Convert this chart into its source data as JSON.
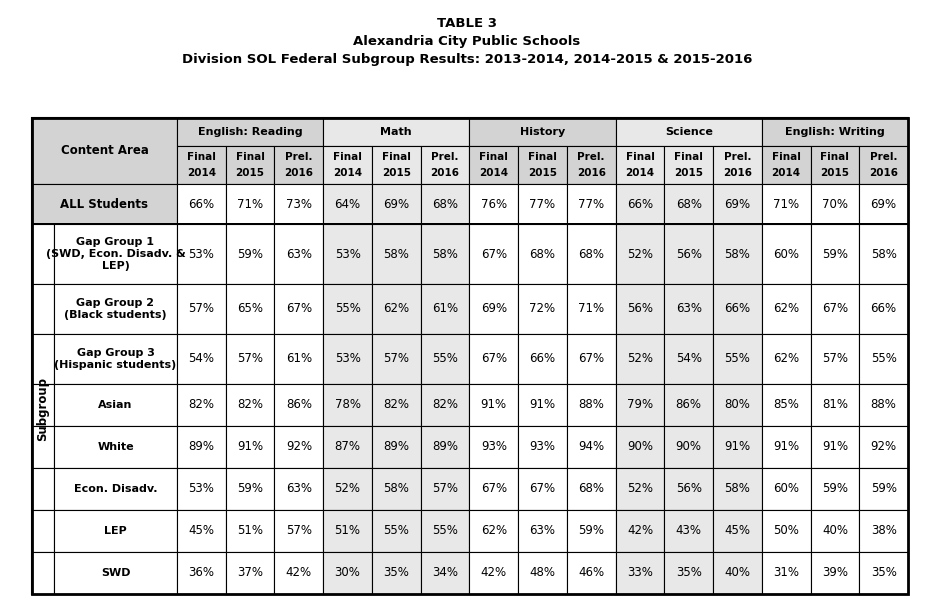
{
  "title_line1": "TABLE 3",
  "title_line2": "Alexandria City Public Schools",
  "title_line3": "Division SOL Federal Subgroup Results: 2013-2014, 2014-2015 & 2015-2016",
  "subject_headers": [
    "English: Reading",
    "Math",
    "History",
    "Science",
    "English: Writing"
  ],
  "row_label_header": "Content Area",
  "subgroup_label": "Subgroup",
  "rows": [
    {
      "label": "ALL Students",
      "multiline": false,
      "subgroup": false,
      "data": [
        "66%",
        "71%",
        "73%",
        "64%",
        "69%",
        "68%",
        "76%",
        "77%",
        "77%",
        "66%",
        "68%",
        "69%",
        "71%",
        "70%",
        "69%"
      ]
    },
    {
      "label": "Gap Group 1\n(SWD, Econ. Disadv. &\nLEP)",
      "multiline": true,
      "subgroup": true,
      "data": [
        "53%",
        "59%",
        "63%",
        "53%",
        "58%",
        "58%",
        "67%",
        "68%",
        "68%",
        "52%",
        "56%",
        "58%",
        "60%",
        "59%",
        "58%"
      ]
    },
    {
      "label": "Gap Group 2\n(Black students)",
      "multiline": true,
      "subgroup": true,
      "data": [
        "57%",
        "65%",
        "67%",
        "55%",
        "62%",
        "61%",
        "69%",
        "72%",
        "71%",
        "56%",
        "63%",
        "66%",
        "62%",
        "67%",
        "66%"
      ]
    },
    {
      "label": "Gap Group 3\n(Hispanic students)",
      "multiline": true,
      "subgroup": true,
      "data": [
        "54%",
        "57%",
        "61%",
        "53%",
        "57%",
        "55%",
        "67%",
        "66%",
        "67%",
        "52%",
        "54%",
        "55%",
        "62%",
        "57%",
        "55%"
      ]
    },
    {
      "label": "Asian",
      "multiline": false,
      "subgroup": true,
      "data": [
        "82%",
        "82%",
        "86%",
        "78%",
        "82%",
        "82%",
        "91%",
        "91%",
        "88%",
        "79%",
        "86%",
        "80%",
        "85%",
        "81%",
        "88%"
      ]
    },
    {
      "label": "White",
      "multiline": false,
      "subgroup": true,
      "data": [
        "89%",
        "91%",
        "92%",
        "87%",
        "89%",
        "89%",
        "93%",
        "93%",
        "94%",
        "90%",
        "90%",
        "91%",
        "91%",
        "91%",
        "92%"
      ]
    },
    {
      "label": "Econ. Disadv.",
      "multiline": false,
      "subgroup": true,
      "data": [
        "53%",
        "59%",
        "63%",
        "52%",
        "58%",
        "57%",
        "67%",
        "67%",
        "68%",
        "52%",
        "56%",
        "58%",
        "60%",
        "59%",
        "59%"
      ]
    },
    {
      "label": "LEP",
      "multiline": false,
      "subgroup": true,
      "data": [
        "45%",
        "51%",
        "57%",
        "51%",
        "55%",
        "55%",
        "62%",
        "63%",
        "59%",
        "42%",
        "43%",
        "45%",
        "50%",
        "40%",
        "38%"
      ]
    },
    {
      "label": "SWD",
      "multiline": false,
      "subgroup": true,
      "data": [
        "36%",
        "37%",
        "42%",
        "30%",
        "35%",
        "34%",
        "42%",
        "48%",
        "46%",
        "33%",
        "35%",
        "40%",
        "31%",
        "39%",
        "35%"
      ]
    }
  ],
  "gray_bg": "#d3d3d3",
  "light_gray_bg": "#e8e8e8",
  "white_bg": "#ffffff",
  "border_color": "#000000",
  "text_color": "#000000"
}
